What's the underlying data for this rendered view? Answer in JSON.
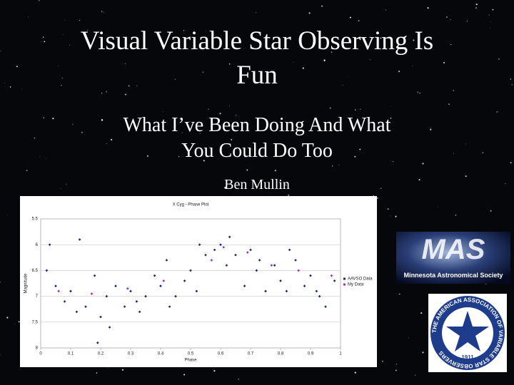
{
  "title_lines": [
    "Visual Variable Star Observing Is",
    "Fun"
  ],
  "subtitle_lines": [
    "What I’ve Been Doing And What",
    "You Could Do Too"
  ],
  "author": "Ben Mullin",
  "mas_logo": {
    "mark": "MAS",
    "caption": "Minnesota Astronomical Society"
  },
  "aavso_logo": {
    "ring": "THE AMERICAN ASSOCIATION OF VARIABLE STAR OBSERVERS",
    "year": "1911"
  },
  "chart_data": {
    "type": "scatter",
    "title": "X Cyg - Phase Plot",
    "x_label": "Phase",
    "y_label": "Magnitude",
    "xlim": [
      0,
      1
    ],
    "xticks": [
      0,
      0.1,
      0.2,
      0.3,
      0.4,
      0.5,
      0.6,
      0.7,
      0.8,
      0.9,
      1
    ],
    "ylim": [
      5.5,
      8
    ],
    "yticks": [
      5.5,
      6,
      6.5,
      7,
      7.5,
      8
    ],
    "y_inverted": true,
    "grid": true,
    "legend": "right",
    "series": [
      {
        "name": "AAVSO Data",
        "color": "#1f2a6b",
        "x": [
          0.02,
          0.05,
          0.08,
          0.1,
          0.12,
          0.15,
          0.18,
          0.2,
          0.22,
          0.25,
          0.28,
          0.3,
          0.32,
          0.35,
          0.38,
          0.4,
          0.42,
          0.45,
          0.48,
          0.5,
          0.52,
          0.55,
          0.58,
          0.6,
          0.62,
          0.65,
          0.68,
          0.7,
          0.72,
          0.75,
          0.78,
          0.8,
          0.82,
          0.85,
          0.88,
          0.9,
          0.92,
          0.95,
          0.98,
          0.03,
          0.13,
          0.23,
          0.33,
          0.43,
          0.53,
          0.63,
          0.73,
          0.83,
          0.93,
          0.19
        ],
        "values": [
          6.5,
          6.8,
          7.1,
          6.9,
          7.3,
          7.2,
          6.6,
          7.4,
          7.0,
          6.8,
          7.2,
          6.9,
          7.1,
          7.0,
          6.6,
          6.8,
          6.3,
          7.0,
          6.7,
          6.5,
          6.9,
          6.2,
          6.1,
          6.0,
          6.4,
          6.2,
          6.8,
          6.1,
          6.5,
          6.9,
          6.4,
          6.7,
          6.9,
          6.3,
          6.8,
          6.6,
          6.9,
          7.2,
          6.7,
          6.0,
          5.9,
          7.6,
          7.3,
          7.2,
          6.0,
          5.85,
          6.3,
          6.1,
          7.0,
          7.9
        ]
      },
      {
        "name": "My Data",
        "color": "#9b30d0",
        "x": [
          0.06,
          0.17,
          0.29,
          0.41,
          0.57,
          0.61,
          0.69,
          0.77,
          0.86,
          0.97
        ],
        "values": [
          6.9,
          6.95,
          6.85,
          6.7,
          6.3,
          6.05,
          6.15,
          6.4,
          6.5,
          6.6
        ]
      }
    ]
  }
}
